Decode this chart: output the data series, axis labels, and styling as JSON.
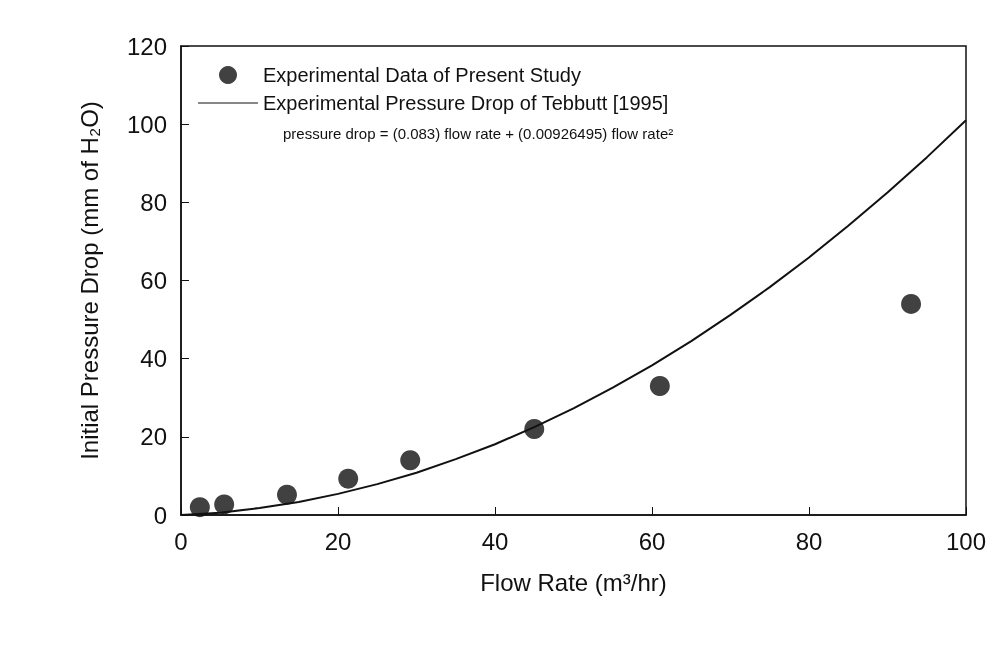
{
  "chart_data": {
    "type": "scatter",
    "xlabel": "Flow Rate (m³/hr)",
    "ylabel": "Initial Pressure Drop (mm of H₂O)",
    "xlim": [
      0,
      100
    ],
    "xticks": [
      0,
      20,
      40,
      60,
      80,
      100
    ],
    "ylim": [
      0,
      120
    ],
    "yticks": [
      0,
      20,
      40,
      60,
      80,
      100,
      120
    ],
    "grid": false,
    "legend": "top left",
    "marker": "circle",
    "annotations": [
      "pressure drop = (0.083) flow rate + (0.00926495) flow rate²"
    ],
    "series": [
      {
        "name": "Experimental Data of Present Study",
        "color": "#111111",
        "x": [
          2.4,
          5.5,
          13.5,
          21.3,
          29.2,
          45,
          61,
          93
        ],
        "values": [
          2,
          2.7,
          5.2,
          9.3,
          14,
          22,
          33,
          54
        ]
      },
      {
        "name": "Experimental Pressure Drop of Tebbutt [1995]",
        "type": "line",
        "marker": "none",
        "line_style": "solid",
        "color": "#111111",
        "x": [
          0,
          5,
          10,
          15,
          20,
          25,
          30,
          35,
          40,
          45,
          50,
          55,
          60,
          65,
          70,
          75,
          80,
          85,
          90,
          95,
          100
        ],
        "values": [
          0,
          0.6,
          1.8,
          3.3,
          5.4,
          7.9,
          10.8,
          14.3,
          18.1,
          22.5,
          27.3,
          32.6,
          38.3,
          44.5,
          51.2,
          58.3,
          65.9,
          74,
          82.5,
          91.5,
          101
        ]
      }
    ]
  }
}
